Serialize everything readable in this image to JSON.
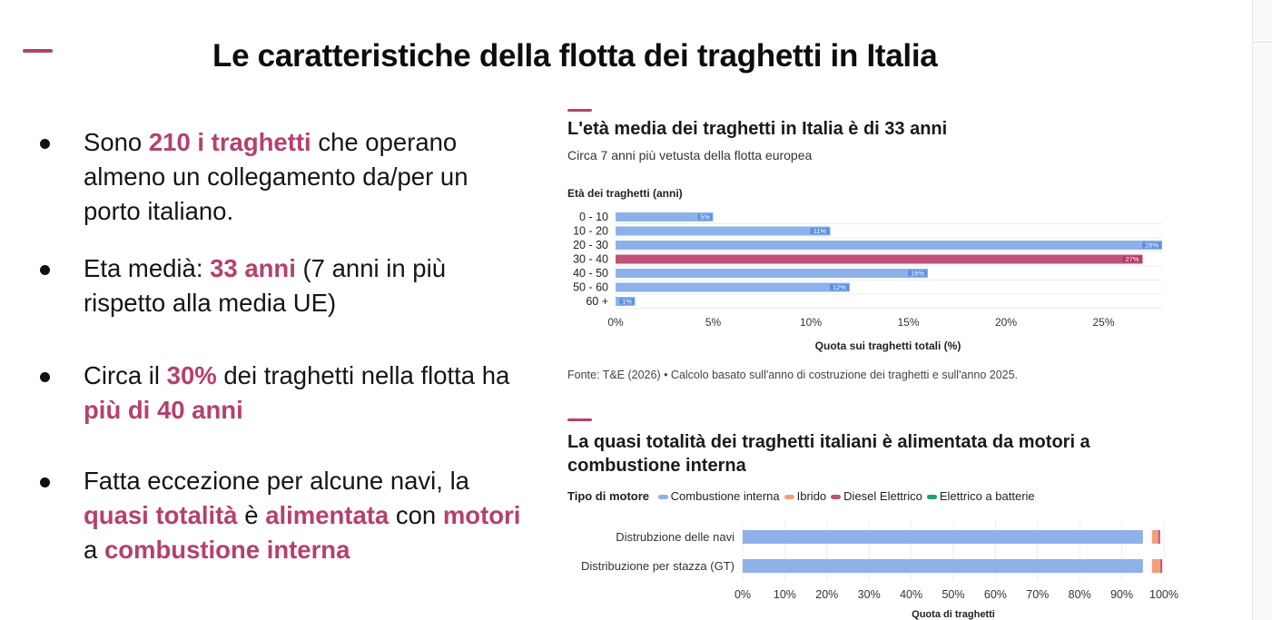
{
  "slide": {
    "title": "Le caratteristiche della flotta dei traghetti in Italia",
    "accent_color": "#b5406e"
  },
  "bullets": [
    [
      {
        "text": "Sono ",
        "hl": false
      },
      {
        "text": "210 i traghetti",
        "hl": true
      },
      {
        "text": " che operano almeno un collegamento da/per un porto italiano.",
        "hl": false
      }
    ],
    [
      {
        "text": "Eta medià: ",
        "hl": false
      },
      {
        "text": "33 anni",
        "hl": true
      },
      {
        "text": " (7 anni in più rispetto alla media UE)",
        "hl": false
      }
    ],
    [
      {
        "text": "Circa il ",
        "hl": false
      },
      {
        "text": "30%",
        "hl": true
      },
      {
        "text": " dei traghetti nella flotta ha ",
        "hl": false
      },
      {
        "text": "più di 40 anni",
        "hl": true
      }
    ],
    [
      {
        "text": "Fatta eccezione per alcune navi, la ",
        "hl": false
      },
      {
        "text": "quasi totalità",
        "hl": true
      },
      {
        "text": " è ",
        "hl": false
      },
      {
        "text": "alimentata",
        "hl": true
      },
      {
        "text": " con ",
        "hl": false
      },
      {
        "text": "motori",
        "hl": true
      },
      {
        "text": " a ",
        "hl": false
      },
      {
        "text": "combustione interna",
        "hl": true
      }
    ]
  ],
  "chart1": {
    "title": "L'età media dei traghetti in Italia è di 33 anni",
    "subtitle": "Circa 7 anni più vetusta della flotta europea",
    "source": "Fonte: T&E (2026) • Calcolo basato sull'anno di costruzione dei traghetti e sull'anno 2025."
  },
  "chart2": {
    "title": "La quasi totalità dei traghetti italiani è alimentata da motori a combustione interna",
    "legend_title": "Tipo di motore"
  },
  "chart_data": [
    {
      "type": "bar",
      "orientation": "horizontal",
      "title": "L'età media dei traghetti in Italia è di 33 anni",
      "subtitle": "Circa 7 anni più vetusta della flotta europea",
      "ylabel": "Età dei traghetti (anni)",
      "xlabel": "Quota sui traghetti totali (%)",
      "categories": [
        "0 - 10",
        "10 - 20",
        "20 - 30",
        "30 - 40",
        "40 - 50",
        "50 - 60",
        "60 +"
      ],
      "values": [
        5,
        11,
        28,
        27,
        16,
        12,
        1
      ],
      "labels": [
        "5%",
        "11%",
        "28%",
        "27%",
        "16%",
        "12%",
        "1%"
      ],
      "highlight_index": 3,
      "xlim": [
        0,
        28
      ],
      "xticks": [
        0,
        5,
        10,
        15,
        20,
        25
      ],
      "xtick_labels": [
        "0%",
        "5%",
        "10%",
        "15%",
        "20%",
        "25%"
      ],
      "colors": {
        "default": "#8eb1ea",
        "highlight": "#c0527a",
        "label_bg": "#5b8fdf",
        "label_bg_highlight": "#b23b67"
      },
      "grid": true
    },
    {
      "type": "bar",
      "orientation": "horizontal",
      "stacked": true,
      "xlabel": "Quota di traghetti",
      "legend_title": "Tipo di motore",
      "legend_position": "top",
      "categories": [
        "Distrubzione delle navi",
        "Distribuzione per stazza (GT)"
      ],
      "series": [
        {
          "name": "Combustione interna",
          "color": "#8eb1ea",
          "values": [
            95,
            95
          ]
        },
        {
          "name": "Ibrido",
          "color": "#f2a07b",
          "values": [
            1.5,
            2
          ]
        },
        {
          "name": "Diesel Elettrico",
          "color": "#c0527a",
          "values": [
            1.5,
            0.5
          ]
        },
        {
          "name": "Elettrico a batterie",
          "color": "#1aa37a",
          "values": [
            0,
            0
          ]
        }
      ],
      "xlim": [
        0,
        100
      ],
      "xticks": [
        0,
        10,
        20,
        30,
        40,
        50,
        60,
        70,
        80,
        90,
        100
      ],
      "xtick_labels": [
        "0%",
        "10%",
        "20%",
        "30%",
        "40%",
        "50%",
        "60%",
        "70%",
        "80%",
        "90%",
        "100%"
      ],
      "grid": true
    }
  ]
}
